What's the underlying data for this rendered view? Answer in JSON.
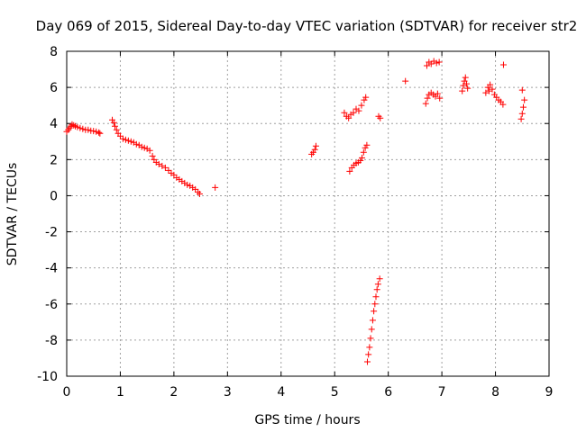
{
  "chart_data": {
    "type": "scatter",
    "title": "Day 069 of 2015, Sidereal Day-to-day VTEC variation (SDTVAR) for receiver str2",
    "xlabel": "GPS time / hours",
    "ylabel": "SDTVAR / TECUs",
    "xlim": [
      0,
      9
    ],
    "ylim": [
      -10,
      8
    ],
    "xticks": [
      0,
      1,
      2,
      3,
      4,
      5,
      6,
      7,
      8,
      9
    ],
    "yticks": [
      -10,
      -8,
      -6,
      -4,
      -2,
      0,
      2,
      4,
      6,
      8
    ],
    "xtick_labels": [
      "0",
      "1",
      "2",
      "3",
      "4",
      "5",
      "6",
      "7",
      "8",
      "9"
    ],
    "ytick_labels": [
      "-10",
      "-8",
      "-6",
      "-4",
      "-2",
      "0",
      "2",
      "4",
      "6",
      "8"
    ],
    "grid": true,
    "marker": "+",
    "color": "#ff0000",
    "series": [
      {
        "name": "str2",
        "points": [
          [
            0.0,
            3.55
          ],
          [
            0.03,
            3.65
          ],
          [
            0.05,
            3.75
          ],
          [
            0.08,
            3.85
          ],
          [
            0.1,
            3.95
          ],
          [
            0.13,
            3.9
          ],
          [
            0.16,
            3.85
          ],
          [
            0.2,
            3.8
          ],
          [
            0.25,
            3.75
          ],
          [
            0.3,
            3.7
          ],
          [
            0.35,
            3.65
          ],
          [
            0.4,
            3.65
          ],
          [
            0.45,
            3.6
          ],
          [
            0.5,
            3.58
          ],
          [
            0.55,
            3.55
          ],
          [
            0.6,
            3.5
          ],
          [
            0.62,
            3.45
          ],
          [
            0.85,
            4.2
          ],
          [
            0.88,
            4.05
          ],
          [
            0.9,
            3.85
          ],
          [
            0.93,
            3.65
          ],
          [
            0.96,
            3.45
          ],
          [
            1.0,
            3.3
          ],
          [
            1.05,
            3.15
          ],
          [
            1.1,
            3.1
          ],
          [
            1.15,
            3.05
          ],
          [
            1.2,
            3.0
          ],
          [
            1.25,
            2.95
          ],
          [
            1.3,
            2.85
          ],
          [
            1.35,
            2.8
          ],
          [
            1.4,
            2.7
          ],
          [
            1.45,
            2.65
          ],
          [
            1.5,
            2.6
          ],
          [
            1.55,
            2.5
          ],
          [
            1.6,
            2.2
          ],
          [
            1.63,
            2.0
          ],
          [
            1.67,
            1.85
          ],
          [
            1.72,
            1.75
          ],
          [
            1.78,
            1.65
          ],
          [
            1.84,
            1.55
          ],
          [
            1.9,
            1.4
          ],
          [
            1.95,
            1.25
          ],
          [
            2.0,
            1.15
          ],
          [
            2.05,
            1.0
          ],
          [
            2.1,
            0.9
          ],
          [
            2.15,
            0.8
          ],
          [
            2.2,
            0.7
          ],
          [
            2.25,
            0.6
          ],
          [
            2.3,
            0.55
          ],
          [
            2.35,
            0.45
          ],
          [
            2.4,
            0.35
          ],
          [
            2.45,
            0.2
          ],
          [
            2.48,
            0.1
          ],
          [
            2.77,
            0.45
          ],
          [
            4.57,
            2.3
          ],
          [
            4.6,
            2.4
          ],
          [
            4.63,
            2.55
          ],
          [
            4.65,
            2.75
          ],
          [
            5.18,
            4.6
          ],
          [
            5.22,
            4.4
          ],
          [
            5.26,
            4.3
          ],
          [
            5.3,
            4.5
          ],
          [
            5.35,
            4.6
          ],
          [
            5.4,
            4.8
          ],
          [
            5.45,
            4.7
          ],
          [
            5.5,
            5.0
          ],
          [
            5.55,
            5.3
          ],
          [
            5.58,
            5.45
          ],
          [
            5.28,
            1.35
          ],
          [
            5.32,
            1.55
          ],
          [
            5.36,
            1.7
          ],
          [
            5.4,
            1.8
          ],
          [
            5.44,
            1.85
          ],
          [
            5.48,
            1.95
          ],
          [
            5.51,
            2.1
          ],
          [
            5.54,
            2.4
          ],
          [
            5.57,
            2.65
          ],
          [
            5.6,
            2.8
          ],
          [
            5.61,
            -9.2
          ],
          [
            5.63,
            -8.8
          ],
          [
            5.65,
            -8.4
          ],
          [
            5.67,
            -7.9
          ],
          [
            5.69,
            -7.4
          ],
          [
            5.71,
            -6.9
          ],
          [
            5.73,
            -6.4
          ],
          [
            5.75,
            -6.0
          ],
          [
            5.77,
            -5.6
          ],
          [
            5.79,
            -5.2
          ],
          [
            5.81,
            -4.9
          ],
          [
            5.84,
            -4.6
          ],
          [
            5.82,
            4.4
          ],
          [
            5.85,
            4.3
          ],
          [
            6.32,
            6.35
          ],
          [
            6.7,
            5.1
          ],
          [
            6.73,
            5.4
          ],
          [
            6.76,
            5.6
          ],
          [
            6.8,
            5.7
          ],
          [
            6.84,
            5.6
          ],
          [
            6.88,
            5.5
          ],
          [
            6.92,
            5.65
          ],
          [
            6.96,
            5.4
          ],
          [
            6.72,
            7.2
          ],
          [
            6.76,
            7.4
          ],
          [
            6.8,
            7.3
          ],
          [
            6.85,
            7.45
          ],
          [
            6.9,
            7.35
          ],
          [
            6.95,
            7.4
          ],
          [
            7.38,
            5.8
          ],
          [
            7.4,
            6.1
          ],
          [
            7.42,
            6.35
          ],
          [
            7.44,
            6.55
          ],
          [
            7.46,
            6.2
          ],
          [
            7.48,
            5.95
          ],
          [
            7.82,
            5.7
          ],
          [
            7.86,
            6.0
          ],
          [
            7.9,
            6.15
          ],
          [
            7.94,
            5.9
          ],
          [
            7.98,
            5.6
          ],
          [
            8.02,
            5.45
          ],
          [
            8.06,
            5.3
          ],
          [
            8.1,
            5.2
          ],
          [
            8.14,
            5.05
          ],
          [
            7.88,
            5.8
          ],
          [
            8.15,
            7.25
          ],
          [
            8.48,
            4.25
          ],
          [
            8.5,
            4.55
          ],
          [
            8.52,
            4.9
          ],
          [
            8.54,
            5.3
          ],
          [
            8.5,
            5.85
          ]
        ]
      }
    ]
  }
}
